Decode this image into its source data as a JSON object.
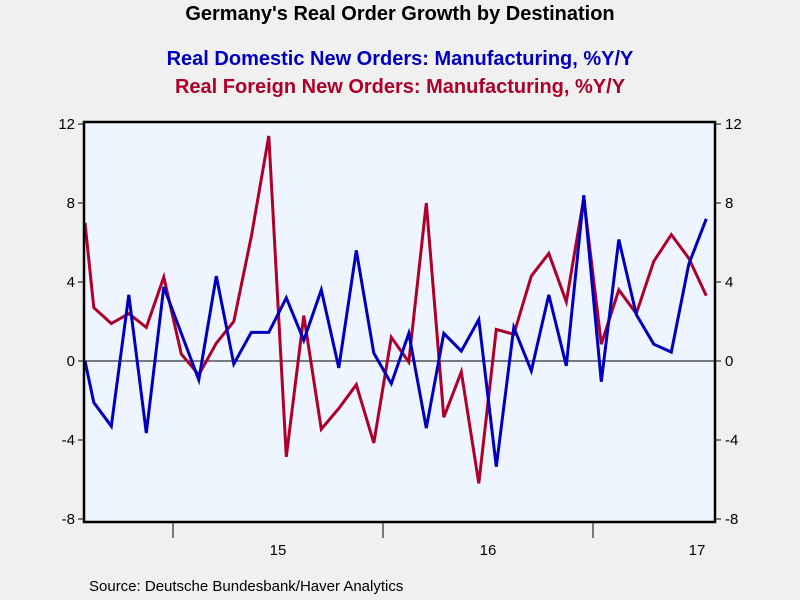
{
  "chart_data": {
    "type": "line",
    "title": "Germany's Real Order Growth by Destination",
    "source": "Source:  Deutsche Bundesbank/Haver Analytics",
    "xlabel": "",
    "ylabel": "",
    "ylim": [
      -8,
      12
    ],
    "yticks": [
      -8,
      -4,
      0,
      4,
      8,
      12
    ],
    "ytick_labels": [
      "-8",
      "-4",
      "0",
      "4",
      "8",
      "12"
    ],
    "x_year_labels": [
      {
        "label": "15",
        "year": 2015
      },
      {
        "label": "16",
        "year": 2016
      },
      {
        "label": "17",
        "year": 2017
      }
    ],
    "x_start": "2014-07 (partial, clipped at left edge)",
    "x": [
      "2014-07",
      "2014-08",
      "2014-09",
      "2014-10",
      "2014-11",
      "2014-12",
      "2015-01",
      "2015-02",
      "2015-03",
      "2015-04",
      "2015-05",
      "2015-06",
      "2015-07",
      "2015-08",
      "2015-09",
      "2015-10",
      "2015-11",
      "2015-12",
      "2016-01",
      "2016-02",
      "2016-03",
      "2016-04",
      "2016-05",
      "2016-06",
      "2016-07",
      "2016-08",
      "2016-09",
      "2016-10",
      "2016-11",
      "2016-12",
      "2017-01",
      "2017-02",
      "2017-03",
      "2017-04",
      "2017-05",
      "2017-06",
      "2017-07"
    ],
    "series": [
      {
        "name": "Real Domestic New Orders: Manufacturing, %Y/Y",
        "color": "#0000c0",
        "values": [
          0.0,
          -2.1,
          -3.3,
          3.35,
          -3.65,
          3.75,
          1.4,
          -0.95,
          4.3,
          -0.15,
          1.45,
          1.45,
          3.2,
          1.05,
          3.6,
          -0.35,
          5.6,
          0.4,
          -1.15,
          1.4,
          -3.4,
          1.4,
          0.5,
          2.1,
          -5.35,
          1.7,
          -0.5,
          3.35,
          -0.25,
          8.4,
          -1.05,
          6.15,
          2.35,
          0.85,
          0.45,
          4.9,
          7.2
        ]
      },
      {
        "name": "Real Foreign New Orders: Manufacturing, %Y/Y",
        "color": "#b0002a",
        "values": [
          7.0,
          2.7,
          1.9,
          2.4,
          1.7,
          4.25,
          0.35,
          -0.7,
          0.9,
          2.0,
          6.3,
          11.4,
          -4.85,
          2.3,
          -3.45,
          -2.4,
          -1.2,
          -4.15,
          1.2,
          -0.05,
          8.0,
          -2.85,
          -0.55,
          -6.2,
          1.6,
          1.35,
          4.3,
          5.45,
          3.0,
          8.25,
          0.85,
          3.6,
          2.4,
          5.05,
          6.4,
          5.2,
          3.3
        ]
      }
    ],
    "grid": false,
    "zero_line": true,
    "legend": "top-center (as subtitle lines)",
    "dual_y_axis": true,
    "plot_background": "#eef5ff"
  }
}
